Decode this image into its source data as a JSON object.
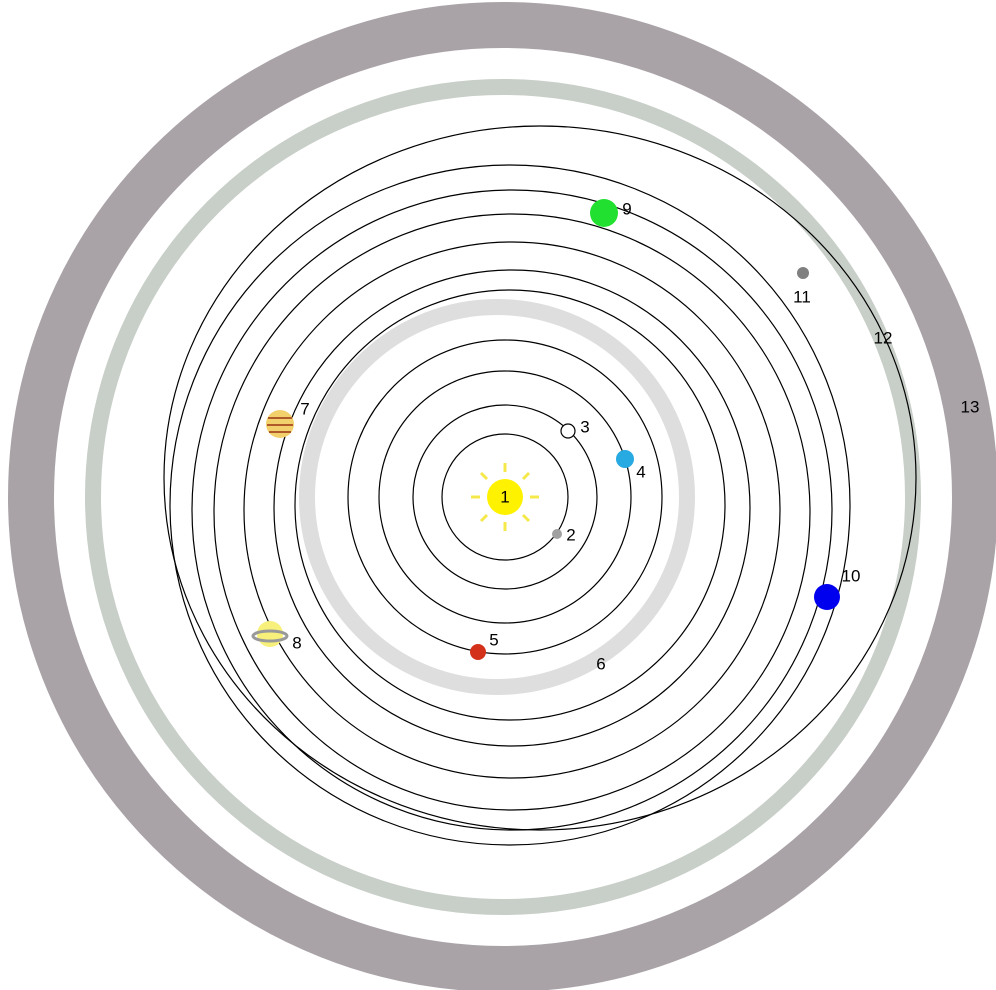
{
  "labels": [
    "1",
    "2",
    "3",
    "4",
    "5",
    "6",
    "7",
    "8",
    "9",
    "10",
    "11",
    "12",
    "13"
  ]
}
